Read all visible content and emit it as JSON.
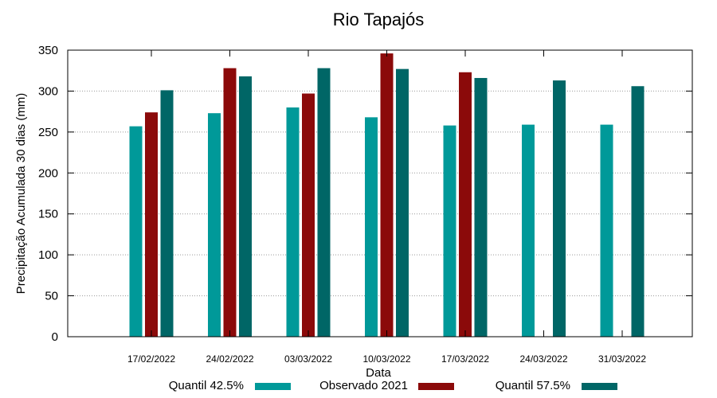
{
  "chart_data": {
    "type": "bar",
    "title": "Rio Tapajós",
    "xlabel": "Data",
    "ylabel": "Precipitação Acumulada 30 dias (mm)",
    "ylim": [
      0,
      350
    ],
    "yticks": [
      0,
      50,
      100,
      150,
      200,
      250,
      300,
      350
    ],
    "grid": true,
    "legend_position": "bottom",
    "categories": [
      "17/02/2022",
      "24/02/2022",
      "03/03/2022",
      "10/03/2022",
      "17/03/2022",
      "24/03/2022",
      "31/03/2022"
    ],
    "series": [
      {
        "name": "Quantil 42.5%",
        "color": "#009999",
        "values": [
          257,
          273,
          280,
          268,
          258,
          259,
          259
        ]
      },
      {
        "name": "Observado 2021",
        "color": "#8b0a0a",
        "values": [
          274,
          328,
          297,
          346,
          323,
          null,
          null
        ]
      },
      {
        "name": "Quantil 57.5%",
        "color": "#006666",
        "values": [
          301,
          318,
          328,
          327,
          316,
          313,
          306
        ]
      }
    ]
  }
}
